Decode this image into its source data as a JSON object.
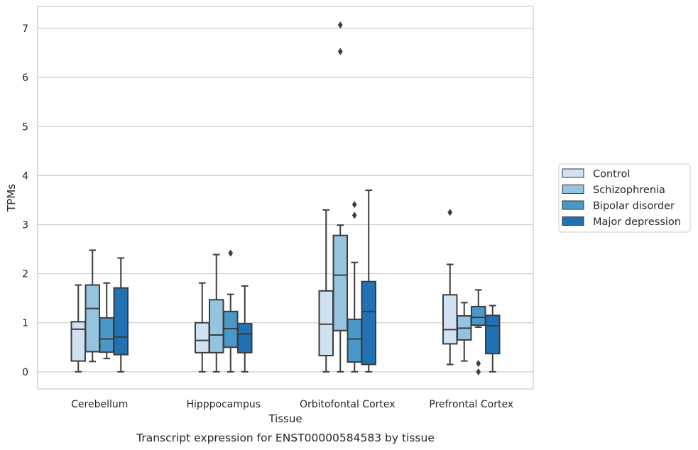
{
  "chart_data": {
    "type": "box",
    "caption": "Transcript expression for ENST00000584583 by tissue",
    "xlabel": "Tissue",
    "ylabel": "TPMs",
    "ylim": [
      -0.35,
      7.45
    ],
    "yticks": [
      0,
      1,
      2,
      3,
      4,
      5,
      6,
      7
    ],
    "grid": "horizontal",
    "legend_position": "right",
    "categories": [
      "Cerebellum",
      "Hipppocampus",
      "Orbitofontal Cortex",
      "Prefrontal Cortex"
    ],
    "series": [
      {
        "name": "Control",
        "color": "#d0e1f2",
        "boxes": [
          {
            "whislo": 0.0,
            "q1": 0.22,
            "med": 0.87,
            "q3": 1.02,
            "whishi": 1.77,
            "fliers": []
          },
          {
            "whislo": 0.0,
            "q1": 0.39,
            "med": 0.64,
            "q3": 1.0,
            "whishi": 1.81,
            "fliers": []
          },
          {
            "whislo": 0.0,
            "q1": 0.33,
            "med": 0.97,
            "q3": 1.65,
            "whishi": 3.3,
            "fliers": []
          },
          {
            "whislo": 0.15,
            "q1": 0.57,
            "med": 0.86,
            "q3": 1.57,
            "whishi": 2.19,
            "fliers": [
              3.25
            ]
          }
        ]
      },
      {
        "name": "Schizophrenia",
        "color": "#94c4df",
        "boxes": [
          {
            "whislo": 0.21,
            "q1": 0.41,
            "med": 1.29,
            "q3": 1.77,
            "whishi": 2.48,
            "fliers": []
          },
          {
            "whislo": 0.0,
            "q1": 0.39,
            "med": 0.75,
            "q3": 1.47,
            "whishi": 2.39,
            "fliers": []
          },
          {
            "whislo": 0.0,
            "q1": 0.84,
            "med": 1.97,
            "q3": 2.78,
            "whishi": 2.99,
            "fliers": [
              6.53,
              7.07
            ]
          },
          {
            "whislo": 0.22,
            "q1": 0.65,
            "med": 0.89,
            "q3": 1.14,
            "whishi": 1.41,
            "fliers": []
          }
        ]
      },
      {
        "name": "Bipolar disorder",
        "color": "#4a98c9",
        "boxes": [
          {
            "whislo": 0.27,
            "q1": 0.4,
            "med": 0.67,
            "q3": 1.1,
            "whishi": 1.81,
            "fliers": []
          },
          {
            "whislo": 0.0,
            "q1": 0.5,
            "med": 0.88,
            "q3": 1.23,
            "whishi": 1.58,
            "fliers": [
              2.42
            ]
          },
          {
            "whislo": 0.0,
            "q1": 0.2,
            "med": 0.67,
            "q3": 1.07,
            "whishi": 2.23,
            "fliers": [
              3.19,
              3.41
            ]
          },
          {
            "whislo": 0.91,
            "q1": 0.95,
            "med": 1.11,
            "q3": 1.33,
            "whishi": 1.67,
            "fliers": [
              0.0,
              0.17
            ]
          }
        ]
      },
      {
        "name": "Major depression",
        "color": "#2171b5",
        "boxes": [
          {
            "whislo": 0.0,
            "q1": 0.35,
            "med": 0.71,
            "q3": 1.71,
            "whishi": 2.32,
            "fliers": []
          },
          {
            "whislo": 0.0,
            "q1": 0.39,
            "med": 0.77,
            "q3": 0.98,
            "whishi": 1.75,
            "fliers": []
          },
          {
            "whislo": 0.0,
            "q1": 0.15,
            "med": 1.23,
            "q3": 1.84,
            "whishi": 3.7,
            "fliers": []
          },
          {
            "whislo": 0.0,
            "q1": 0.37,
            "med": 0.94,
            "q3": 1.15,
            "whishi": 1.35,
            "fliers": []
          }
        ]
      }
    ]
  }
}
